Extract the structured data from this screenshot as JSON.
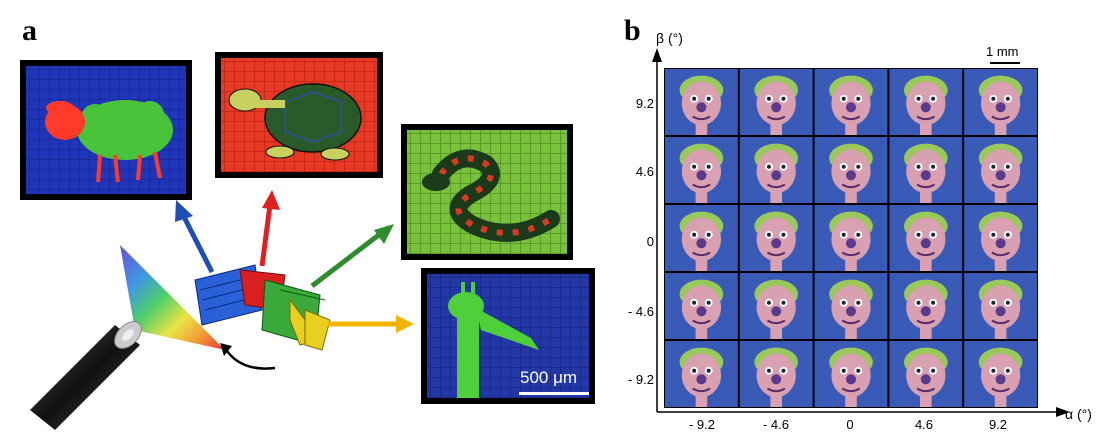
{
  "panel_a": {
    "label": "a",
    "scale_bar_label": "500 μm"
  },
  "panel_b": {
    "label": "b",
    "y_axis_label": "β (°)",
    "x_axis_label": "α (°)",
    "scale_bar_label": "1 mm",
    "y_ticks": [
      "9.2",
      "4.6",
      "0",
      "- 4.6",
      "- 9.2"
    ],
    "x_ticks": [
      "- 9.2",
      "- 4.6",
      "0",
      "4.6",
      "9.2"
    ]
  },
  "colors": {
    "blue_arrow": "#1f4fb5",
    "red_arrow": "#e02020",
    "green_arrow": "#2e8b2e",
    "yellow_arrow": "#f0b400"
  }
}
